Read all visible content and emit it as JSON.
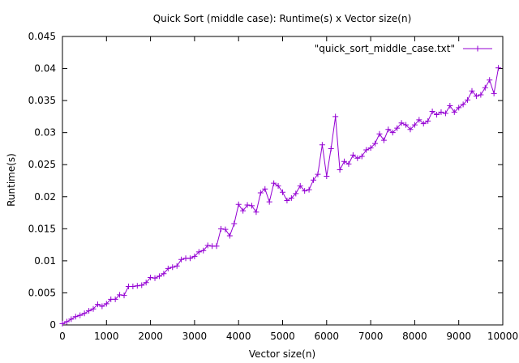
{
  "chart_data": {
    "type": "line",
    "title": "Quick Sort (middle case): Runtime(s) x Vector size(n)",
    "xlabel": "Vector size(n)",
    "ylabel": "Runtime(s)",
    "xlim": [
      0,
      10000
    ],
    "ylim": [
      0,
      0.045
    ],
    "xticks": [
      0,
      1000,
      2000,
      3000,
      4000,
      5000,
      6000,
      7000,
      8000,
      9000,
      10000
    ],
    "yticks": [
      0,
      0.005,
      0.01,
      0.015,
      0.02,
      0.025,
      0.03,
      0.035,
      0.04,
      0.045
    ],
    "xtick_labels": [
      "0",
      "1000",
      "2000",
      "3000",
      "4000",
      "5000",
      "6000",
      "7000",
      "8000",
      "9000",
      "10000"
    ],
    "ytick_labels": [
      "0",
      "0.005",
      "0.01",
      "0.015",
      "0.02",
      "0.025",
      "0.03",
      "0.035",
      "0.04",
      "0.045"
    ],
    "grid": false,
    "legend_position": "top-right",
    "series": [
      {
        "name": "\"quick_sort_middle_case.txt\"",
        "color": "#9400d3",
        "marker": "plus",
        "x": [
          0,
          100,
          200,
          300,
          400,
          500,
          600,
          700,
          800,
          900,
          1000,
          1100,
          1200,
          1300,
          1400,
          1500,
          1600,
          1700,
          1800,
          1900,
          2000,
          2100,
          2200,
          2300,
          2400,
          2500,
          2600,
          2700,
          2800,
          2900,
          3000,
          3100,
          3200,
          3300,
          3400,
          3500,
          3600,
          3700,
          3800,
          3900,
          4000,
          4100,
          4200,
          4300,
          4400,
          4500,
          4600,
          4700,
          4800,
          4900,
          5000,
          5100,
          5200,
          5300,
          5400,
          5500,
          5600,
          5700,
          5800,
          5900,
          6000,
          6100,
          6200,
          6300,
          6400,
          6500,
          6600,
          6700,
          6800,
          6900,
          7000,
          7100,
          7200,
          7300,
          7400,
          7500,
          7600,
          7700,
          7800,
          7900,
          8000,
          8100,
          8200,
          8300,
          8400,
          8500,
          8600,
          8700,
          8800,
          8900,
          9000,
          9100,
          9200,
          9300,
          9400,
          9500,
          9600,
          9700,
          9800,
          9900
        ],
        "y": [
          0.0002,
          0.0005,
          0.0009,
          0.0013,
          0.0015,
          0.0018,
          0.0022,
          0.0025,
          0.0032,
          0.0029,
          0.0033,
          0.004,
          0.004,
          0.0047,
          0.0046,
          0.006,
          0.006,
          0.0061,
          0.0062,
          0.0066,
          0.0074,
          0.0073,
          0.0076,
          0.008,
          0.0088,
          0.009,
          0.0092,
          0.0102,
          0.0104,
          0.0104,
          0.0107,
          0.0114,
          0.0116,
          0.0124,
          0.0123,
          0.0123,
          0.015,
          0.0149,
          0.0139,
          0.0158,
          0.0188,
          0.0178,
          0.0187,
          0.0186,
          0.0176,
          0.0206,
          0.0212,
          0.0192,
          0.0221,
          0.0217,
          0.0207,
          0.0194,
          0.0198,
          0.0205,
          0.0217,
          0.0209,
          0.0211,
          0.0226,
          0.0235,
          0.0281,
          0.0232,
          0.0275,
          0.0325,
          0.0242,
          0.0255,
          0.0251,
          0.0265,
          0.026,
          0.0263,
          0.0273,
          0.0276,
          0.0283,
          0.0298,
          0.0288,
          0.0305,
          0.03,
          0.0307,
          0.0315,
          0.0312,
          0.0305,
          0.0312,
          0.032,
          0.0314,
          0.0318,
          0.0333,
          0.0328,
          0.0332,
          0.033,
          0.0342,
          0.0332,
          0.0339,
          0.0344,
          0.0351,
          0.0365,
          0.0357,
          0.0359,
          0.037,
          0.0382,
          0.0361,
          0.0401
        ]
      }
    ]
  }
}
